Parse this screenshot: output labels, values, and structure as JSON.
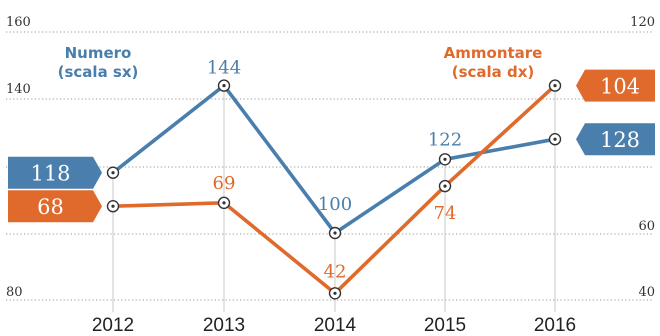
{
  "chart_data": {
    "type": "line",
    "categories": [
      "2012",
      "2013",
      "2014",
      "2015",
      "2016"
    ],
    "left_axis": {
      "ticks": [
        "160",
        "140",
        "80"
      ],
      "ylim": [
        80,
        160
      ]
    },
    "right_axis": {
      "ticks": [
        "120",
        "60",
        "40"
      ],
      "ylim": [
        40,
        120
      ]
    },
    "series": [
      {
        "name": "Numero",
        "legend": [
          "Numero",
          "(scala sx)"
        ],
        "axis": "left",
        "color": "#4a7fad",
        "values": [
          118,
          144,
          100,
          122,
          128
        ],
        "labels": [
          "118",
          "144",
          "100",
          "122",
          "128"
        ]
      },
      {
        "name": "Ammontare",
        "legend": [
          "Ammontare",
          "(scala dx)"
        ],
        "axis": "right",
        "color": "#e06a2c",
        "values": [
          68,
          69,
          42,
          74,
          104
        ],
        "labels": [
          "68",
          "69",
          "42",
          "74",
          "104"
        ]
      }
    ],
    "grid": true
  }
}
